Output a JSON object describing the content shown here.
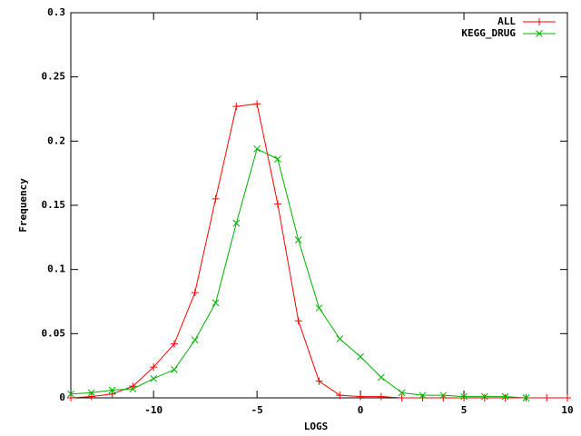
{
  "chart_data": {
    "type": "line",
    "xlabel": "LOGS",
    "ylabel": "Frequency",
    "xlim": [
      -14,
      10
    ],
    "ylim": [
      0,
      0.3
    ],
    "xticks": [
      -10,
      -5,
      0,
      5,
      10
    ],
    "yticks": [
      0,
      0.05,
      0.1,
      0.15,
      0.2,
      0.25,
      0.3
    ],
    "legend": "upper right",
    "series": [
      {
        "name": "ALL",
        "color": "#ff0000",
        "marker": "plus",
        "x": [
          -14,
          -13,
          -12,
          -11,
          -10,
          -9,
          -8,
          -7,
          -6,
          -5,
          -4,
          -3,
          -2,
          -1,
          0,
          1,
          2,
          3,
          4,
          5,
          6,
          7,
          8,
          9,
          10
        ],
        "values": [
          0,
          0.001,
          0.003,
          0.009,
          0.024,
          0.042,
          0.082,
          0.155,
          0.227,
          0.229,
          0.151,
          0.06,
          0.013,
          0.002,
          0.001,
          0.001,
          0,
          0,
          0,
          0,
          0,
          0,
          0,
          0,
          0
        ]
      },
      {
        "name": "KEGG_DRUG",
        "color": "#00b000",
        "marker": "cross",
        "x": [
          -14,
          -13,
          -12,
          -11,
          -10,
          -9,
          -8,
          -7,
          -6,
          -5,
          -4,
          -3,
          -2,
          -1,
          0,
          1,
          2,
          3,
          4,
          5,
          6,
          7,
          8
        ],
        "values": [
          0.003,
          0.004,
          0.006,
          0.007,
          0.015,
          0.022,
          0.045,
          0.074,
          0.136,
          0.194,
          0.186,
          0.123,
          0.07,
          0.046,
          0.032,
          0.016,
          0.004,
          0.002,
          0.002,
          0.001,
          0.001,
          0.001,
          0
        ]
      }
    ]
  }
}
